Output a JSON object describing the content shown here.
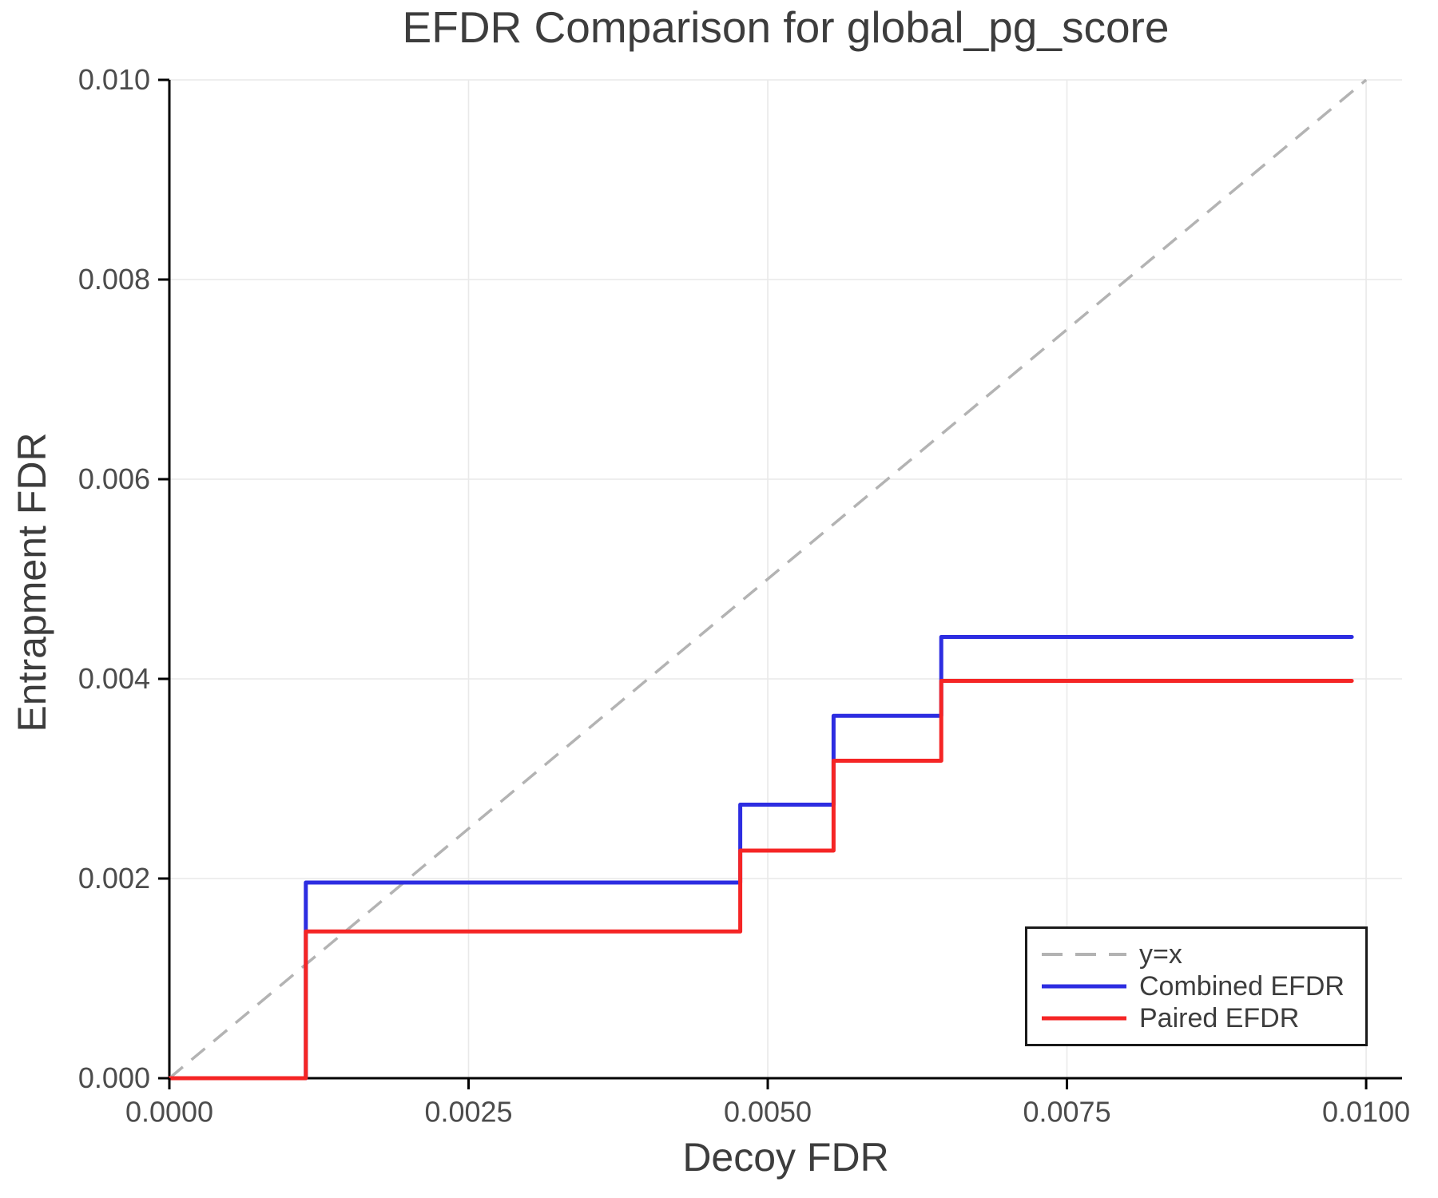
{
  "title": "EFDR Comparison for global_pg_score",
  "axes": {
    "x_label": "Decoy FDR",
    "y_label": "Entrapment FDR",
    "x_tick_labels": [
      "0.0000",
      "0.0025",
      "0.0050",
      "0.0075",
      "0.0100"
    ],
    "y_tick_labels": [
      "0.000",
      "0.002",
      "0.004",
      "0.006",
      "0.008",
      "0.010"
    ]
  },
  "legend": {
    "entries": [
      {
        "label": "y=x",
        "color": "#b3b3b3",
        "dashed": true
      },
      {
        "label": "Combined EFDR",
        "color": "#2d2de1",
        "dashed": false
      },
      {
        "label": "Paired EFDR",
        "color": "#f52525",
        "dashed": false
      }
    ]
  },
  "colors": {
    "background": "#ffffff",
    "grid": "#e9e9e9",
    "axis": "#000000",
    "title_text": "#3d3d3d",
    "tick_text": "#4c4c4c",
    "reference": "#b3b3b3",
    "combined": "#2d2de1",
    "paired": "#f52525"
  },
  "chart_data": {
    "type": "line",
    "title": "EFDR Comparison for global_pg_score",
    "xlabel": "Decoy FDR",
    "ylabel": "Entrapment FDR",
    "xlim": [
      0,
      0.0103
    ],
    "ylim": [
      0,
      0.01
    ],
    "x_ticks": [
      0,
      0.0025,
      0.005,
      0.0075,
      0.01
    ],
    "y_ticks": [
      0,
      0.002,
      0.004,
      0.006,
      0.008,
      0.01
    ],
    "grid": true,
    "legend_position": "lower right",
    "series": [
      {
        "name": "y=x",
        "style": "dashed",
        "color": "#b3b3b3",
        "points": [
          [
            0,
            0
          ],
          [
            0.01,
            0.01
          ]
        ]
      },
      {
        "name": "Combined EFDR",
        "style": "solid",
        "step": "post",
        "color": "#2d2de1",
        "points": [
          [
            0,
            0
          ],
          [
            0.00114,
            0
          ],
          [
            0.00114,
            0.00196
          ],
          [
            0.00477,
            0.00196
          ],
          [
            0.00477,
            0.00274
          ],
          [
            0.00555,
            0.00274
          ],
          [
            0.00555,
            0.00363
          ],
          [
            0.00645,
            0.00363
          ],
          [
            0.00645,
            0.00442
          ],
          [
            0.00988,
            0.00442
          ]
        ]
      },
      {
        "name": "Paired EFDR",
        "style": "solid",
        "step": "post",
        "color": "#f52525",
        "points": [
          [
            0,
            0
          ],
          [
            0.00114,
            0
          ],
          [
            0.00114,
            0.00147
          ],
          [
            0.00477,
            0.00147
          ],
          [
            0.00477,
            0.00228
          ],
          [
            0.00555,
            0.00228
          ],
          [
            0.00555,
            0.00318
          ],
          [
            0.00645,
            0.00318
          ],
          [
            0.00645,
            0.00398
          ],
          [
            0.00988,
            0.00398
          ]
        ]
      }
    ]
  }
}
